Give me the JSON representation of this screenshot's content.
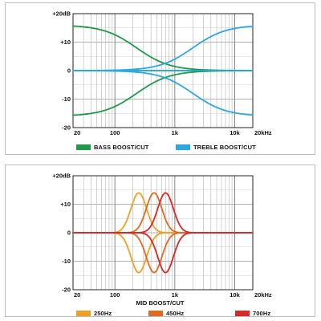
{
  "chart_data": [
    {
      "type": "line",
      "title": "",
      "xlabel": "",
      "ylabel": "",
      "xscale": "log",
      "xlim": [
        20,
        20000
      ],
      "ylim": [
        -20,
        20
      ],
      "grid": true,
      "x_tick_labels": [
        "20",
        "100",
        "1k",
        "10k",
        "20kHz"
      ],
      "y_tick_labels": [
        "+20dB",
        "+10",
        "0",
        "-10",
        "-20"
      ],
      "legend": {
        "placement": "bottom",
        "items": [
          {
            "label": "BASS BOOST/CUT",
            "color": "#1e9a48"
          },
          {
            "label": "TREBLE BOOST/CUT",
            "color": "#2aa8e0"
          }
        ]
      },
      "series": [
        {
          "group": "BASS BOOST/CUT",
          "color": "#1e9a48",
          "type": "lowshelf",
          "f0": 230,
          "gain": 16
        },
        {
          "group": "BASS BOOST/CUT",
          "color": "#1e9a48",
          "type": "lowshelf",
          "f0": 230,
          "gain": -16
        },
        {
          "group": "BASS BOOST/CUT",
          "color": "#1e9a48",
          "type": "lowshelf",
          "f0": 230,
          "gain": 0
        },
        {
          "group": "TREBLE BOOST/CUT",
          "color": "#2aa8e0",
          "type": "highshelf",
          "f0": 2000,
          "gain": 16
        },
        {
          "group": "TREBLE BOOST/CUT",
          "color": "#2aa8e0",
          "type": "highshelf",
          "f0": 2000,
          "gain": -16
        },
        {
          "group": "TREBLE BOOST/CUT",
          "color": "#2aa8e0",
          "type": "highshelf",
          "f0": 2000,
          "gain": 0
        }
      ]
    },
    {
      "type": "line",
      "title": "",
      "xlabel": "",
      "ylabel": "",
      "xscale": "log",
      "xlim": [
        20,
        20000
      ],
      "ylim": [
        -20,
        20
      ],
      "grid": true,
      "x_tick_labels": [
        "20",
        "100",
        "1k",
        "10k",
        "20kHz"
      ],
      "y_tick_labels": [
        "+20dB",
        "+10",
        "0",
        "-10",
        "-20"
      ],
      "caption": "MID BOOST/CUT",
      "legend": {
        "placement": "bottom",
        "items": [
          {
            "label": "250Hz",
            "color": "#f0a020"
          },
          {
            "label": "450Hz",
            "color": "#e06a22"
          },
          {
            "label": "700Hz",
            "color": "#d42a2a"
          }
        ]
      },
      "series": [
        {
          "group": "250Hz",
          "color": "#f0a020",
          "type": "peak",
          "f0": 250,
          "gain": 14
        },
        {
          "group": "250Hz",
          "color": "#f0a020",
          "type": "peak",
          "f0": 250,
          "gain": -14
        },
        {
          "group": "450Hz",
          "color": "#e06a22",
          "type": "peak",
          "f0": 450,
          "gain": 14
        },
        {
          "group": "450Hz",
          "color": "#e06a22",
          "type": "peak",
          "f0": 450,
          "gain": -14
        },
        {
          "group": "700Hz",
          "color": "#d42a2a",
          "type": "peak",
          "f0": 700,
          "gain": 14
        },
        {
          "group": "700Hz",
          "color": "#d42a2a",
          "type": "peak",
          "f0": 700,
          "gain": -14
        }
      ]
    }
  ]
}
